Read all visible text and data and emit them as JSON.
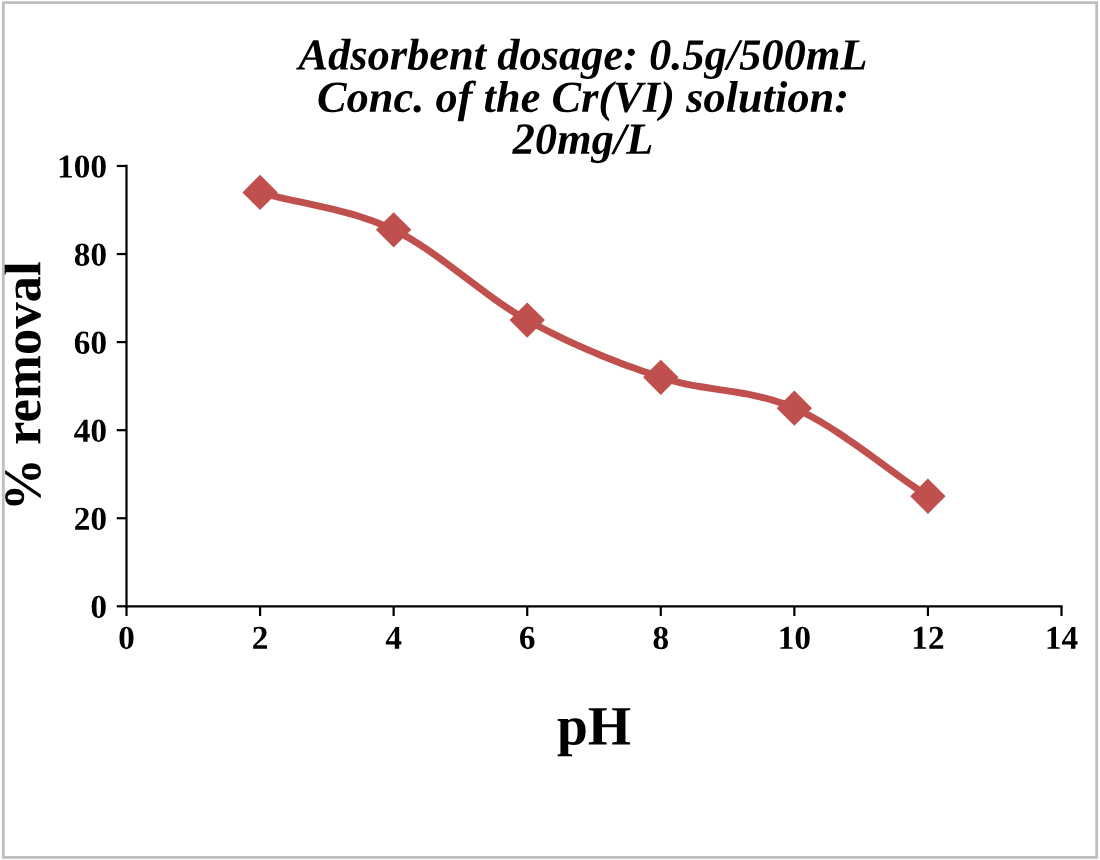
{
  "chart_data": {
    "type": "line",
    "title": "Adsorbent dosage: 0.5g/500mL\nConc. of the Cr(VI) solution:\n20mg/L",
    "xlabel": "pH",
    "ylabel": "% removal",
    "x": [
      2,
      4,
      6,
      8,
      10,
      12
    ],
    "series": [
      {
        "color": "#c0504d",
        "values": [
          94,
          85.5,
          65,
          52,
          45,
          25
        ]
      }
    ],
    "xlim": [
      0,
      14
    ],
    "xticks": [
      0,
      2,
      4,
      6,
      8,
      10,
      12,
      14
    ],
    "ylim": [
      0,
      100
    ],
    "yticks": [
      0,
      20,
      40,
      60,
      80,
      100
    ],
    "grid": false,
    "legend": false,
    "marker": "diamond",
    "line_style": "solid"
  }
}
